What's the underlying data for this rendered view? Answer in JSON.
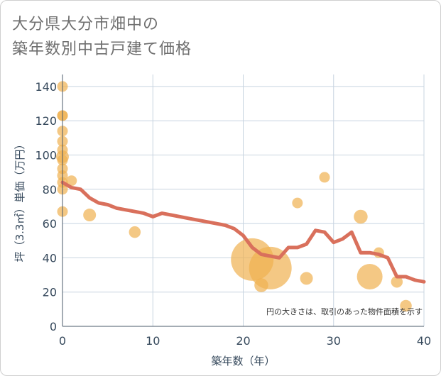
{
  "title_lines": [
    "大分県大分市畑中の",
    "築年数別中古戸建て価格"
  ],
  "chart_data": {
    "type": "scatter",
    "title": "大分県大分市畑中の築年数別中古戸建て価格",
    "xlabel": "築年数（年）",
    "ylabel": "坪（3.3㎡）単価（万円）",
    "xlim": [
      0,
      40
    ],
    "ylim": [
      0,
      147
    ],
    "xticks": [
      0,
      10,
      20,
      30,
      40
    ],
    "yticks": [
      0,
      20,
      40,
      60,
      80,
      100,
      120,
      140
    ],
    "grid": true,
    "note": "円の大きさは、取引のあった物件面積を示す",
    "colors": {
      "bubble": "#f0b050",
      "line": "#d9705c",
      "grid": "#c8d4e0"
    },
    "bubbles": [
      {
        "x": 0,
        "y": 140,
        "size": 1.0
      },
      {
        "x": 0,
        "y": 123,
        "size": 1.0
      },
      {
        "x": 0,
        "y": 123,
        "size": 1.0
      },
      {
        "x": 0,
        "y": 114,
        "size": 1.0
      },
      {
        "x": 0,
        "y": 108,
        "size": 1.0
      },
      {
        "x": 0,
        "y": 103,
        "size": 1.0
      },
      {
        "x": 0,
        "y": 99,
        "size": 1.2
      },
      {
        "x": 0,
        "y": 97,
        "size": 1.0
      },
      {
        "x": 0,
        "y": 92,
        "size": 1.0
      },
      {
        "x": 0,
        "y": 88,
        "size": 1.0
      },
      {
        "x": 0,
        "y": 84,
        "size": 1.0
      },
      {
        "x": 0,
        "y": 80,
        "size": 1.0
      },
      {
        "x": 0,
        "y": 67,
        "size": 1.0
      },
      {
        "x": 1,
        "y": 85,
        "size": 1.0
      },
      {
        "x": 3,
        "y": 65,
        "size": 1.2
      },
      {
        "x": 8,
        "y": 55,
        "size": 1.1
      },
      {
        "x": 21,
        "y": 39,
        "size": 4.0
      },
      {
        "x": 22,
        "y": 24,
        "size": 1.3
      },
      {
        "x": 23,
        "y": 34,
        "size": 4.0
      },
      {
        "x": 26,
        "y": 72,
        "size": 1.0
      },
      {
        "x": 27,
        "y": 28,
        "size": 1.2
      },
      {
        "x": 29,
        "y": 87,
        "size": 1.0
      },
      {
        "x": 33,
        "y": 64,
        "size": 1.3
      },
      {
        "x": 34,
        "y": 29,
        "size": 2.4
      },
      {
        "x": 35,
        "y": 43,
        "size": 1.0
      },
      {
        "x": 37,
        "y": 26,
        "size": 1.1
      },
      {
        "x": 38,
        "y": 12,
        "size": 1.1
      }
    ],
    "trend": {
      "x": [
        0,
        1,
        2,
        3,
        4,
        5,
        6,
        7,
        8,
        9,
        10,
        11,
        12,
        13,
        14,
        15,
        16,
        17,
        18,
        19,
        20,
        21,
        22,
        23,
        24,
        25,
        26,
        27,
        28,
        29,
        30,
        31,
        32,
        33,
        34,
        35,
        36,
        37,
        38,
        39,
        40
      ],
      "y": [
        84,
        81,
        80,
        75,
        72,
        71,
        69,
        68,
        67,
        66,
        64,
        66,
        65,
        64,
        63,
        62,
        61,
        60,
        59,
        57,
        53,
        46,
        42,
        41,
        40,
        46,
        46,
        48,
        56,
        55,
        49,
        51,
        55,
        43,
        43,
        42,
        40,
        29,
        29,
        27,
        26
      ]
    }
  }
}
